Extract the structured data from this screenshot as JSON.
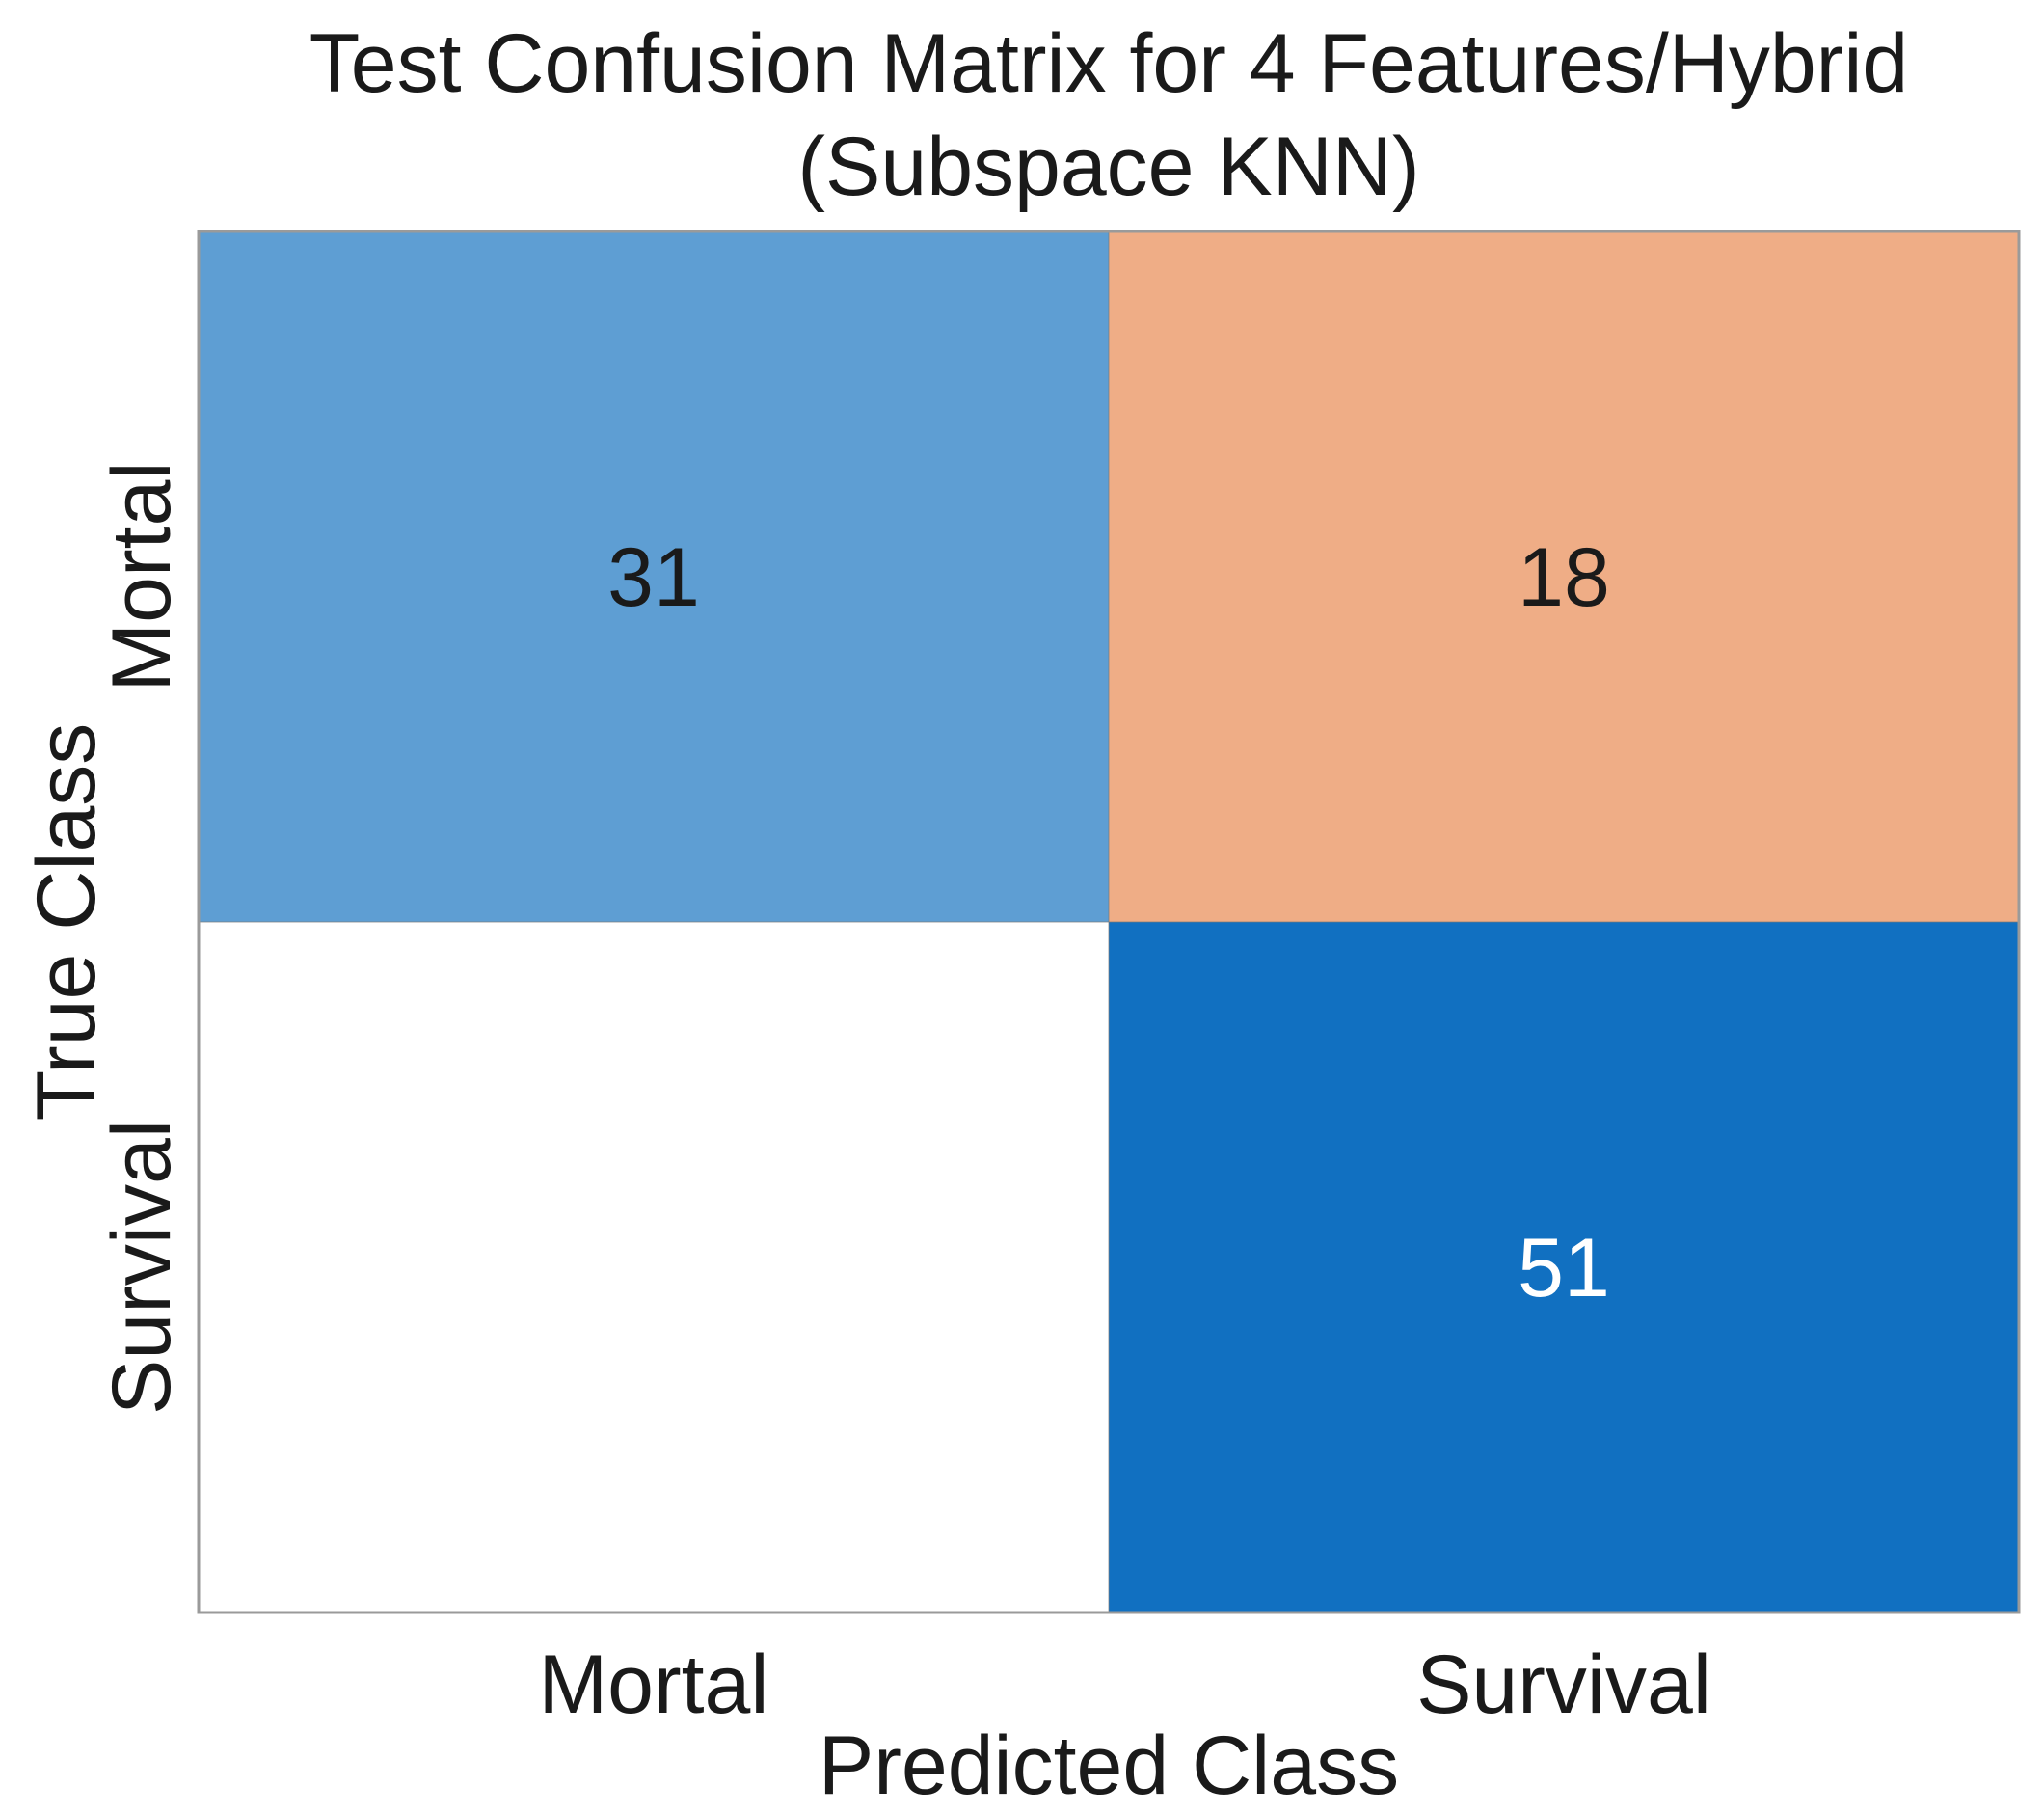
{
  "chart_data": {
    "type": "heatmap",
    "title": "Test Confusion Matrix for 4 Features/Hybrid",
    "subtitle": "(Subspace KNN)",
    "xlabel": "Predicted Class",
    "ylabel": "True Class",
    "x_categories": [
      "Mortal",
      "Survival"
    ],
    "y_categories": [
      "Mortal",
      "Survival"
    ],
    "matrix": [
      [
        31,
        18
      ],
      [
        null,
        51
      ]
    ],
    "cell_colors": [
      [
        "#5e9ed3",
        "#efad86"
      ],
      [
        "#ffffff",
        "#1170c1"
      ]
    ],
    "cell_text_colors": [
      [
        "#1a1a1a",
        "#1a1a1a"
      ],
      [
        "#1a1a1a",
        "#ffffff"
      ]
    ],
    "grid": false
  }
}
